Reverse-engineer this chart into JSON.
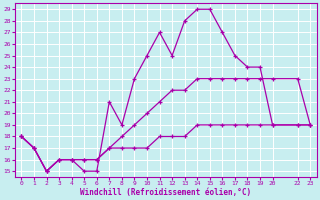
{
  "xlabel": "Windchill (Refroidissement éolien,°C)",
  "bg_color": "#c8eef0",
  "line_color": "#aa00aa",
  "grid_color": "#ffffff",
  "xlim": [
    -0.5,
    23.5
  ],
  "ylim": [
    14.5,
    29.5
  ],
  "yticks": [
    15,
    16,
    17,
    18,
    19,
    20,
    21,
    22,
    23,
    24,
    25,
    26,
    27,
    28,
    29
  ],
  "xticks": [
    0,
    1,
    2,
    3,
    4,
    5,
    6,
    7,
    8,
    9,
    10,
    11,
    12,
    13,
    14,
    15,
    16,
    17,
    18,
    19,
    20,
    22,
    23
  ],
  "xtick_labels": [
    "0",
    "1",
    "2",
    "3",
    "4",
    "5",
    "6",
    "7",
    "8",
    "9",
    "10",
    "11",
    "12",
    "13",
    "14",
    "15",
    "16",
    "17",
    "18",
    "19",
    "20",
    "22",
    "23"
  ],
  "series": [
    {
      "x": [
        0,
        1,
        2,
        3,
        4,
        5,
        6,
        7,
        8,
        9,
        10,
        11,
        12,
        13,
        14,
        15,
        16,
        17,
        18,
        19,
        20,
        22,
        23
      ],
      "y": [
        18,
        17,
        15,
        16,
        16,
        15,
        15,
        21,
        19,
        23,
        25,
        27,
        25,
        28,
        29,
        29,
        27,
        25,
        24,
        24,
        19,
        19,
        19
      ]
    },
    {
      "x": [
        0,
        1,
        2,
        3,
        4,
        5,
        6,
        7,
        8,
        9,
        10,
        11,
        12,
        13,
        14,
        15,
        16,
        17,
        18,
        19,
        20,
        22,
        23
      ],
      "y": [
        18,
        17,
        15,
        16,
        16,
        16,
        16,
        17,
        18,
        19,
        20,
        21,
        22,
        22,
        23,
        23,
        23,
        23,
        23,
        23,
        23,
        23,
        19
      ]
    },
    {
      "x": [
        0,
        1,
        2,
        3,
        4,
        5,
        6,
        7,
        8,
        9,
        10,
        11,
        12,
        13,
        14,
        15,
        16,
        17,
        18,
        19,
        20,
        22,
        23
      ],
      "y": [
        18,
        17,
        15,
        16,
        16,
        16,
        16,
        17,
        17,
        17,
        17,
        18,
        18,
        18,
        19,
        19,
        19,
        19,
        19,
        19,
        19,
        19,
        19
      ]
    }
  ]
}
